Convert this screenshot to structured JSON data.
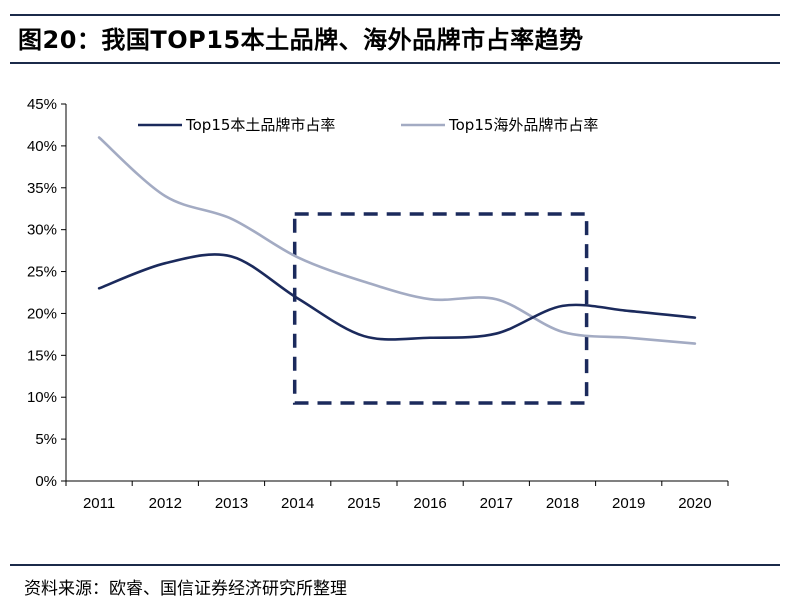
{
  "title": "图20：我国TOP15本土品牌、海外品牌市占率趋势",
  "source": "资料来源：欧睿、国信证券经济研究所整理",
  "chart_data": {
    "type": "line",
    "categories": [
      "2011",
      "2012",
      "2013",
      "2014",
      "2015",
      "2016",
      "2017",
      "2018",
      "2019",
      "2020"
    ],
    "y_ticks": [
      "0%",
      "5%",
      "10%",
      "15%",
      "20%",
      "25%",
      "30%",
      "35%",
      "40%",
      "45%"
    ],
    "ylim": [
      0,
      45
    ],
    "grid": false,
    "legend_position": "top",
    "series": [
      {
        "name": "Top15本土品牌市占率",
        "color": "#1b2a5c",
        "values": [
          23.0,
          26.0,
          26.8,
          21.8,
          17.3,
          17.1,
          17.6,
          20.9,
          20.3,
          19.5
        ]
      },
      {
        "name": "Top15海外品牌市占率",
        "color": "#a3abc3",
        "values": [
          41.0,
          34.0,
          31.3,
          26.7,
          23.8,
          21.7,
          21.7,
          17.8,
          17.1,
          16.4
        ]
      }
    ],
    "highlight_box": {
      "x_from": "2014",
      "x_to": "2018"
    }
  }
}
